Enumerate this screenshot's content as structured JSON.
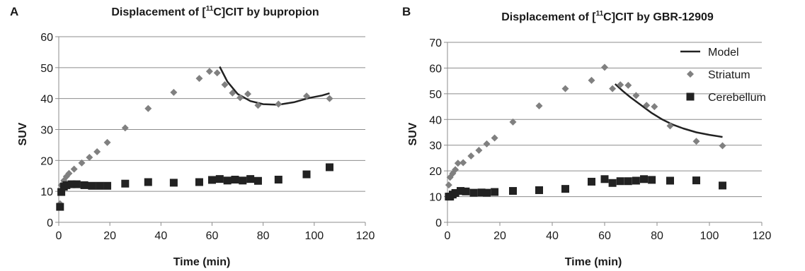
{
  "chart_data": [
    {
      "panel": "A",
      "type": "scatter",
      "title": {
        "pre": "Displacement of [",
        "sup": "11",
        "post": "C]CIT by bupropion"
      },
      "xlabel": "Time (min)",
      "ylabel": "SUV",
      "xlim": [
        0,
        120
      ],
      "ylim": [
        0,
        60
      ],
      "xticks": [
        0,
        20,
        40,
        60,
        80,
        100,
        120
      ],
      "yticks": [
        0,
        10,
        20,
        30,
        40,
        50,
        60
      ],
      "grid": "horizontal",
      "series": [
        {
          "key": "striatum",
          "marker": "diamond",
          "color": "#808080",
          "points": [
            [
              0.5,
              6
            ],
            [
              1,
              12
            ],
            [
              2,
              13.5
            ],
            [
              3,
              14.8
            ],
            [
              4,
              15.8
            ],
            [
              6,
              17.2
            ],
            [
              9,
              19.2
            ],
            [
              12,
              21
            ],
            [
              15,
              22.8
            ],
            [
              19,
              25.8
            ],
            [
              26,
              30.5
            ],
            [
              35,
              36.8
            ],
            [
              45,
              42
            ],
            [
              55,
              46.5
            ],
            [
              59,
              48.8
            ],
            [
              62,
              48.3
            ],
            [
              65,
              44.5
            ],
            [
              68,
              41.8
            ],
            [
              71,
              40.3
            ],
            [
              74,
              41.5
            ],
            [
              78,
              37.8
            ],
            [
              86,
              38.2
            ],
            [
              97,
              40.8
            ],
            [
              106,
              40
            ]
          ]
        },
        {
          "key": "cerebellum",
          "marker": "square",
          "color": "#222222",
          "points": [
            [
              0.5,
              5
            ],
            [
              1,
              9.8
            ],
            [
              2,
              11.5
            ],
            [
              3,
              12
            ],
            [
              5,
              12.3
            ],
            [
              7,
              12.3
            ],
            [
              10,
              12
            ],
            [
              13,
              11.8
            ],
            [
              16,
              11.8
            ],
            [
              19,
              11.8
            ],
            [
              26,
              12.5
            ],
            [
              35,
              13
            ],
            [
              45,
              12.8
            ],
            [
              55,
              13
            ],
            [
              60,
              13.7
            ],
            [
              63,
              14
            ],
            [
              66,
              13.5
            ],
            [
              69,
              13.8
            ],
            [
              72,
              13.5
            ],
            [
              75,
              14
            ],
            [
              78,
              13.4
            ],
            [
              86,
              13.8
            ],
            [
              97,
              15.5
            ],
            [
              106,
              17.8
            ]
          ]
        },
        {
          "key": "model",
          "marker": "line",
          "color": "#222222",
          "points": [
            [
              63,
              50.3
            ],
            [
              66,
              45.5
            ],
            [
              70,
              41.5
            ],
            [
              75,
              39.2
            ],
            [
              80,
              38.2
            ],
            [
              86,
              38
            ],
            [
              92,
              38.8
            ],
            [
              98,
              40.2
            ],
            [
              103,
              41
            ],
            [
              106,
              41.7
            ]
          ]
        }
      ]
    },
    {
      "panel": "B",
      "type": "scatter",
      "title": {
        "pre": "Displacement of [",
        "sup": "11",
        "post": "C]CIT by GBR-12909"
      },
      "xlabel": "Time (min)",
      "ylabel": "SUV",
      "xlim": [
        0,
        120
      ],
      "ylim": [
        0,
        70
      ],
      "xticks": [
        0,
        20,
        40,
        60,
        80,
        100,
        120
      ],
      "yticks": [
        0,
        10,
        20,
        30,
        40,
        50,
        60,
        70
      ],
      "grid": "horizontal",
      "legend": {
        "position": "top-right",
        "entries": [
          {
            "label": "Model",
            "marker": "line",
            "color": "#222222"
          },
          {
            "label": "Striatum",
            "marker": "diamond",
            "color": "#808080"
          },
          {
            "label": "Cerebellum",
            "marker": "square",
            "color": "#222222"
          }
        ]
      },
      "series": [
        {
          "key": "striatum",
          "marker": "diamond",
          "color": "#808080",
          "points": [
            [
              0.5,
              14.5
            ],
            [
              1,
              17.5
            ],
            [
              2,
              19
            ],
            [
              3,
              20.5
            ],
            [
              4,
              23
            ],
            [
              6,
              23.2
            ],
            [
              9,
              25.8
            ],
            [
              12,
              28
            ],
            [
              15,
              30.5
            ],
            [
              18,
              32.8
            ],
            [
              25,
              39
            ],
            [
              35,
              45.3
            ],
            [
              45,
              52
            ],
            [
              55,
              55.2
            ],
            [
              60,
              60.3
            ],
            [
              63,
              52
            ],
            [
              66,
              53.5
            ],
            [
              69,
              53.3
            ],
            [
              72,
              49.3
            ],
            [
              76,
              45.5
            ],
            [
              79,
              45
            ],
            [
              85,
              37.5
            ],
            [
              95,
              31.5
            ],
            [
              105,
              29.8
            ]
          ]
        },
        {
          "key": "cerebellum",
          "marker": "square",
          "color": "#222222",
          "points": [
            [
              0.5,
              10
            ],
            [
              1,
              10
            ],
            [
              2,
              10.8
            ],
            [
              3,
              11.4
            ],
            [
              5,
              12.2
            ],
            [
              7,
              12
            ],
            [
              10,
              11.5
            ],
            [
              13,
              11.6
            ],
            [
              15,
              11.5
            ],
            [
              18,
              11.8
            ],
            [
              25,
              12.2
            ],
            [
              35,
              12.5
            ],
            [
              45,
              13
            ],
            [
              55,
              15.8
            ],
            [
              60,
              16.8
            ],
            [
              63,
              15.3
            ],
            [
              66,
              16
            ],
            [
              69,
              16
            ],
            [
              72,
              16.2
            ],
            [
              75,
              16.8
            ],
            [
              78,
              16.5
            ],
            [
              85,
              16.2
            ],
            [
              95,
              16.3
            ],
            [
              105,
              14.3
            ]
          ]
        },
        {
          "key": "model",
          "marker": "line",
          "color": "#222222",
          "points": [
            [
              64,
              53.8
            ],
            [
              67,
              51
            ],
            [
              70,
              48.5
            ],
            [
              74,
              45.5
            ],
            [
              78,
              42.5
            ],
            [
              82,
              40
            ],
            [
              86,
              38
            ],
            [
              90,
              36.5
            ],
            [
              95,
              35
            ],
            [
              100,
              34
            ],
            [
              105,
              33.2
            ]
          ]
        }
      ]
    }
  ]
}
